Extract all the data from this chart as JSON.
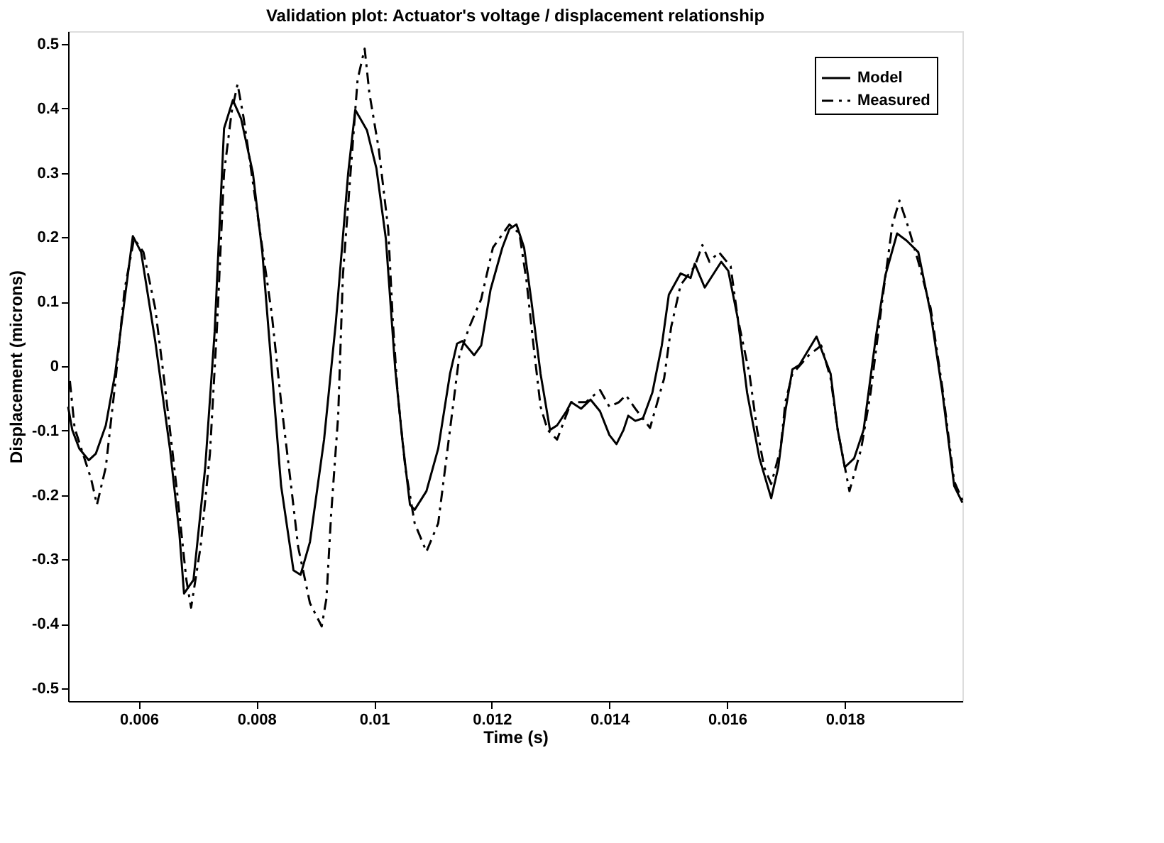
{
  "chart_data": {
    "type": "line",
    "title": "Validation plot: Actuator's voltage / displacement relationship",
    "xlabel": "Time (s)",
    "ylabel": "Displacement (microns)",
    "xlim": [
      0.0048,
      0.02
    ],
    "ylim": [
      -0.52,
      0.52
    ],
    "xticks": [
      0.006,
      0.008,
      0.01,
      0.012,
      0.014,
      0.016,
      0.018
    ],
    "yticks": [
      -0.5,
      -0.4,
      -0.3,
      -0.2,
      -0.1,
      0,
      0.1,
      0.2,
      0.3,
      0.4,
      0.5
    ],
    "grid": false,
    "legend": "top right",
    "marker": "none",
    "series": [
      {
        "name": "Model",
        "color": "#000000",
        "line_style": "solid",
        "x": [
          0.0048,
          0.00487,
          0.00499,
          0.00515,
          0.00527,
          0.00544,
          0.0056,
          0.00572,
          0.0059,
          0.00604,
          0.00628,
          0.00653,
          0.00669,
          0.00677,
          0.00693,
          0.00713,
          0.00729,
          0.00745,
          0.0076,
          0.00774,
          0.00794,
          0.0081,
          0.00826,
          0.00842,
          0.00863,
          0.00875,
          0.00891,
          0.00915,
          0.00935,
          0.00956,
          0.00968,
          0.00988,
          0.01004,
          0.0102,
          0.01036,
          0.01048,
          0.01061,
          0.01069,
          0.01089,
          0.01109,
          0.01129,
          0.01141,
          0.0115,
          0.0117,
          0.01182,
          0.01198,
          0.01218,
          0.0123,
          0.01242,
          0.01255,
          0.01267,
          0.01283,
          0.01299,
          0.01311,
          0.01327,
          0.01335,
          0.01352,
          0.01368,
          0.01384,
          0.014,
          0.01412,
          0.01424,
          0.01432,
          0.01444,
          0.01457,
          0.01473,
          0.01489,
          0.01501,
          0.01521,
          0.01538,
          0.01545,
          0.01562,
          0.0159,
          0.01602,
          0.01618,
          0.01634,
          0.01655,
          0.01675,
          0.01687,
          0.01699,
          0.01711,
          0.01723,
          0.01752,
          0.01776,
          0.01788,
          0.018,
          0.01816,
          0.01832,
          0.01853,
          0.01869,
          0.01889,
          0.01905,
          0.01925,
          0.01946,
          0.01966,
          0.01986,
          0.02
        ],
        "values": [
          -0.063,
          -0.099,
          -0.128,
          -0.146,
          -0.136,
          -0.092,
          -0.011,
          0.075,
          0.202,
          0.177,
          0.039,
          -0.128,
          -0.259,
          -0.353,
          -0.332,
          -0.157,
          0.053,
          0.369,
          0.413,
          0.384,
          0.3,
          0.177,
          -0.005,
          -0.186,
          -0.317,
          -0.324,
          -0.273,
          -0.114,
          0.068,
          0.3,
          0.398,
          0.366,
          0.307,
          0.198,
          -0.005,
          -0.114,
          -0.215,
          -0.223,
          -0.194,
          -0.128,
          -0.012,
          0.035,
          0.039,
          0.017,
          0.032,
          0.119,
          0.184,
          0.213,
          0.22,
          0.184,
          0.104,
          -0.012,
          -0.099,
          -0.092,
          -0.07,
          -0.056,
          -0.066,
          -0.052,
          -0.07,
          -0.107,
          -0.121,
          -0.099,
          -0.077,
          -0.085,
          -0.081,
          -0.041,
          0.032,
          0.111,
          0.144,
          0.137,
          0.159,
          0.122,
          0.162,
          0.148,
          0.075,
          -0.041,
          -0.143,
          -0.205,
          -0.157,
          -0.07,
          -0.005,
          0.002,
          0.046,
          -0.012,
          -0.099,
          -0.157,
          -0.143,
          -0.099,
          0.046,
          0.141,
          0.206,
          0.195,
          0.177,
          0.082,
          -0.041,
          -0.186,
          -0.212
        ]
      },
      {
        "name": "Measured",
        "color": "#000000",
        "line_style": "dashed",
        "x": [
          0.00483,
          0.00491,
          0.00519,
          0.00529,
          0.00544,
          0.0056,
          0.00576,
          0.00592,
          0.00608,
          0.00628,
          0.00644,
          0.00665,
          0.00681,
          0.00689,
          0.00705,
          0.00721,
          0.00733,
          0.00745,
          0.00758,
          0.00768,
          0.00778,
          0.00802,
          0.00826,
          0.00842,
          0.00859,
          0.00871,
          0.00891,
          0.00911,
          0.00919,
          0.00927,
          0.00939,
          0.00947,
          0.0096,
          0.00972,
          0.00984,
          0.00992,
          0.01008,
          0.01024,
          0.01032,
          0.0104,
          0.01053,
          0.01069,
          0.01089,
          0.01109,
          0.01121,
          0.01133,
          0.01145,
          0.01162,
          0.01182,
          0.01202,
          0.0123,
          0.01247,
          0.01259,
          0.01271,
          0.01283,
          0.01295,
          0.01311,
          0.01335,
          0.0136,
          0.01384,
          0.014,
          0.01416,
          0.01428,
          0.01444,
          0.01469,
          0.01493,
          0.01505,
          0.01521,
          0.01545,
          0.01558,
          0.0157,
          0.01586,
          0.01606,
          0.01618,
          0.01638,
          0.01651,
          0.01663,
          0.01675,
          0.01691,
          0.01699,
          0.01711,
          0.01739,
          0.0176,
          0.01776,
          0.01788,
          0.01808,
          0.01828,
          0.01844,
          0.01865,
          0.01881,
          0.01893,
          0.01909,
          0.01925,
          0.01946,
          0.01966,
          0.01986,
          0.02
        ],
        "values": [
          -0.023,
          -0.096,
          -0.175,
          -0.215,
          -0.157,
          -0.027,
          0.119,
          0.198,
          0.177,
          0.09,
          -0.027,
          -0.194,
          -0.332,
          -0.375,
          -0.281,
          -0.136,
          0.061,
          0.3,
          0.395,
          0.438,
          0.387,
          0.235,
          0.082,
          -0.056,
          -0.186,
          -0.281,
          -0.368,
          -0.404,
          -0.361,
          -0.23,
          -0.077,
          0.141,
          0.3,
          0.445,
          0.493,
          0.424,
          0.337,
          0.213,
          0.068,
          -0.041,
          -0.157,
          -0.244,
          -0.288,
          -0.244,
          -0.157,
          -0.07,
          0.017,
          0.061,
          0.104,
          0.184,
          0.22,
          0.206,
          0.133,
          0.032,
          -0.063,
          -0.099,
          -0.114,
          -0.056,
          -0.056,
          -0.037,
          -0.063,
          -0.056,
          -0.045,
          -0.066,
          -0.096,
          -0.019,
          0.061,
          0.126,
          0.155,
          0.188,
          0.162,
          0.177,
          0.155,
          0.075,
          -0.012,
          -0.099,
          -0.157,
          -0.183,
          -0.128,
          -0.056,
          -0.012,
          0.017,
          0.032,
          -0.019,
          -0.099,
          -0.194,
          -0.128,
          -0.041,
          0.111,
          0.22,
          0.257,
          0.213,
          0.162,
          0.09,
          -0.034,
          -0.179,
          -0.208
        ]
      }
    ]
  }
}
